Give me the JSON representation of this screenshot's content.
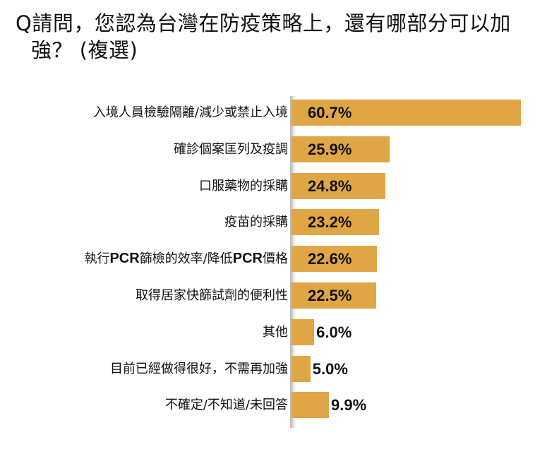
{
  "title": {
    "line1": "Q請問，您認為台灣在防疫策略上，還有哪部分可以加",
    "line2": "強？ (複選)"
  },
  "colors": {
    "bar": "#e0a646",
    "text": "#111111",
    "background": "#ffffff"
  },
  "chart_data": {
    "type": "bar",
    "orientation": "horizontal",
    "title": "Q請問，您認為台灣在防疫策略上，還有哪部分可以加強？ (複選)",
    "xlabel": "",
    "ylabel": "",
    "grid": false,
    "legend": null,
    "unit": "%",
    "categories": [
      "入境人員檢驗隔離/減少或禁止入境",
      "確診個案匡列及疫調",
      "口服藥物的採購",
      "疫苗的採購",
      "執行PCR篩檢的效率/降低PCR價格",
      "取得居家快篩試劑的便利性",
      "其他",
      "目前已經做得很好，不需再加強",
      "不確定/不知道/未回答"
    ],
    "values": [
      60.7,
      25.9,
      24.8,
      23.2,
      22.6,
      22.5,
      6.0,
      5.0,
      9.9
    ],
    "value_labels": [
      "60.7%",
      "25.9%",
      "24.8%",
      "23.2%",
      "22.6%",
      "22.5%",
      "6.0%",
      "5.0%",
      "9.9%"
    ],
    "xlim": [
      0,
      60.7
    ]
  },
  "rows": [
    {
      "label_parts": [
        "入境人員檢驗隔離/減少或禁止入境"
      ],
      "value": 60.7,
      "value_label": "60.7%"
    },
    {
      "label_parts": [
        "確診個案匡列及疫調"
      ],
      "value": 25.9,
      "value_label": "25.9%"
    },
    {
      "label_parts": [
        "口服藥物的採購"
      ],
      "value": 24.8,
      "value_label": "24.8%"
    },
    {
      "label_parts": [
        "疫苗的採購"
      ],
      "value": 23.2,
      "value_label": "23.2%"
    },
    {
      "label_parts": [
        "執行",
        "PCR",
        "篩檢的效率/降低",
        "PCR",
        "價格"
      ],
      "value": 22.6,
      "value_label": "22.6%"
    },
    {
      "label_parts": [
        "取得居家快篩試劑的便利性"
      ],
      "value": 22.5,
      "value_label": "22.5%"
    },
    {
      "label_parts": [
        "其他"
      ],
      "value": 6.0,
      "value_label": "6.0%"
    },
    {
      "label_parts": [
        "目前已經做得很好，不需再加強"
      ],
      "value": 5.0,
      "value_label": "5.0%"
    },
    {
      "label_parts": [
        "不確定/不知道/未回答"
      ],
      "value": 9.9,
      "value_label": "9.9%"
    }
  ]
}
